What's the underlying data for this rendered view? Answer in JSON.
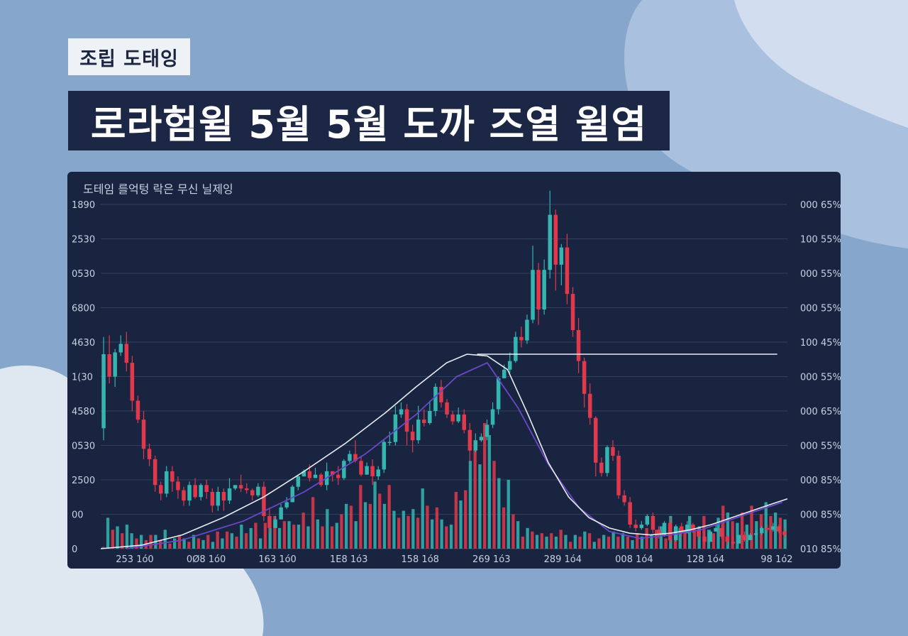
{
  "tag_label": "조립 도태잉",
  "headline": "로라험윌 5월 5월 도까 즈열 윌염",
  "chart_data": {
    "type": "candlestick-volume",
    "subtitle": "도테임 를억텅 락은 무신 닐제잉",
    "left_ticks": [
      "1890",
      "2530",
      "0530",
      "6800",
      "4630",
      "1(30",
      "4580",
      "0530",
      "2500",
      "00",
      "0"
    ],
    "right_ticks": [
      "000 65%",
      "100 55%",
      "000 55%",
      "000 55%",
      "100 45%",
      "000 55%",
      "000 65%",
      "000 55%",
      "000 85%",
      "000 85%",
      "010 85%"
    ],
    "x_ticks": [
      "253 1ó0",
      "0Ø8 1ó0",
      "163 1ó0",
      "1E8 1ó3",
      "158 1ó8",
      "269 1ó3",
      "289 1ó4",
      "008 1ó4",
      "128 1ó4",
      "98 1ó2"
    ],
    "grid": true,
    "colors": {
      "up": "#35b5b0",
      "down": "#e2384b",
      "line_white": "#e8ecf0",
      "line_purple": "#6a48c8",
      "panel_bg": "#182440",
      "grid": "#33405c"
    },
    "price_candles": [
      [
        7.0,
        11.3,
        12.3,
        6.3
      ],
      [
        11.3,
        10.0,
        12.4,
        9.6
      ],
      [
        10.0,
        11.4,
        11.6,
        9.4
      ],
      [
        11.4,
        11.9,
        12.4,
        11.2
      ],
      [
        11.9,
        10.8,
        12.6,
        10.3
      ],
      [
        10.8,
        8.6,
        11.2,
        8.0
      ],
      [
        8.6,
        7.5,
        8.9,
        7.3
      ],
      [
        7.5,
        5.8,
        8.0,
        5.2
      ],
      [
        5.8,
        5.2,
        6.1,
        4.8
      ],
      [
        5.2,
        3.7,
        5.4,
        3.3
      ],
      [
        3.7,
        3.2,
        3.9,
        2.8
      ],
      [
        3.2,
        4.5,
        4.8,
        3.0
      ],
      [
        4.5,
        3.9,
        4.8,
        3.3
      ],
      [
        3.9,
        3.4,
        4.2,
        2.9
      ],
      [
        3.4,
        2.8,
        3.6,
        2.5
      ],
      [
        2.8,
        3.7,
        3.9,
        2.5
      ],
      [
        3.7,
        3.0,
        4.1,
        2.9
      ],
      [
        3.0,
        3.7,
        3.8,
        2.8
      ],
      [
        3.7,
        3.3,
        4.0,
        2.9
      ],
      [
        3.3,
        2.5,
        3.5,
        2.1
      ],
      [
        2.5,
        3.3,
        3.6,
        2.2
      ],
      [
        3.3,
        2.8,
        3.5,
        2.2
      ],
      [
        2.8,
        3.5,
        4.1,
        2.6
      ],
      [
        3.5,
        3.7,
        3.7,
        3.4
      ],
      [
        3.7,
        3.5,
        4.3,
        3.3
      ],
      [
        3.5,
        3.4,
        3.8,
        3.2
      ],
      [
        3.4,
        3.1,
        3.5,
        2.8
      ],
      [
        3.1,
        3.6,
        3.8,
        3.0
      ],
      [
        3.6,
        1.9,
        3.9,
        1.6
      ],
      [
        1.9,
        1.2,
        2.4,
        0.9
      ],
      [
        1.2,
        1.7,
        1.9,
        1.2
      ],
      [
        1.7,
        2.4,
        2.6,
        1.7
      ],
      [
        2.4,
        2.7,
        3.0,
        2.3
      ],
      [
        2.7,
        3.6,
        3.7,
        2.7
      ],
      [
        3.6,
        4.2,
        4.3,
        3.4
      ],
      [
        4.2,
        4.5,
        4.6,
        4.2
      ],
      [
        4.5,
        4.1,
        4.9,
        3.9
      ],
      [
        4.1,
        4.3,
        4.7,
        4.1
      ],
      [
        4.3,
        3.7,
        4.4,
        3.6
      ],
      [
        3.7,
        4.5,
        5.0,
        3.4
      ],
      [
        4.5,
        4.3,
        4.5,
        3.9
      ],
      [
        4.3,
        4.1,
        4.8,
        3.7
      ],
      [
        4.1,
        5.1,
        5.2,
        4.0
      ],
      [
        5.1,
        5.5,
        5.7,
        5.0
      ],
      [
        5.5,
        5.1,
        6.3,
        5.0
      ],
      [
        5.1,
        4.3,
        5.4,
        4.2
      ],
      [
        4.3,
        4.8,
        5.0,
        4.3
      ],
      [
        4.8,
        4.2,
        5.2,
        3.7
      ],
      [
        4.2,
        4.6,
        4.8,
        4.0
      ],
      [
        4.6,
        6.2,
        6.3,
        4.4
      ],
      [
        6.2,
        6.2,
        6.8,
        6.0
      ],
      [
        6.2,
        7.8,
        8.3,
        6.0
      ],
      [
        7.8,
        8.1,
        8.5,
        7.6
      ],
      [
        8.1,
        6.8,
        8.4,
        6.0
      ],
      [
        6.8,
        6.3,
        7.2,
        5.6
      ],
      [
        6.3,
        7.5,
        8.3,
        6.1
      ],
      [
        7.5,
        7.3,
        8.1,
        7.1
      ],
      [
        7.3,
        8.0,
        8.6,
        7.2
      ],
      [
        8.0,
        9.4,
        9.6,
        7.7
      ],
      [
        9.4,
        8.5,
        9.8,
        8.2
      ],
      [
        8.5,
        7.8,
        8.7,
        7.6
      ],
      [
        7.8,
        7.4,
        8.0,
        7.2
      ],
      [
        7.4,
        7.8,
        8.2,
        7.3
      ],
      [
        7.8,
        6.9,
        8.1,
        6.7
      ],
      [
        6.9,
        5.7,
        7.3,
        5.1
      ],
      [
        5.7,
        6.3,
        6.7,
        5.6
      ],
      [
        6.3,
        6.5,
        6.7,
        6.2
      ],
      [
        6.5,
        7.2,
        7.5,
        6.3
      ],
      [
        7.2,
        8.1,
        8.5,
        7.0
      ],
      [
        8.1,
        9.9,
        10.0,
        7.8
      ],
      [
        9.9,
        10.4,
        10.7,
        9.9
      ],
      [
        10.4,
        10.9,
        11.4,
        10.2
      ],
      [
        10.9,
        12.3,
        12.6,
        10.8
      ],
      [
        12.3,
        12.1,
        12.9,
        11.7
      ],
      [
        12.1,
        13.3,
        13.6,
        11.9
      ],
      [
        13.3,
        16.2,
        17.6,
        13.1
      ],
      [
        16.2,
        13.9,
        16.6,
        13.0
      ],
      [
        13.9,
        16.2,
        16.8,
        13.6
      ],
      [
        16.2,
        19.4,
        20.8,
        15.7
      ],
      [
        19.4,
        16.5,
        19.7,
        15.0
      ],
      [
        16.5,
        17.5,
        17.7,
        15.3
      ],
      [
        17.5,
        14.8,
        18.3,
        14.2
      ],
      [
        14.8,
        12.7,
        15.2,
        12.3
      ],
      [
        12.7,
        10.9,
        13.4,
        10.2
      ],
      [
        10.9,
        9.0,
        11.1,
        8.2
      ],
      [
        9.0,
        7.6,
        9.6,
        7.2
      ],
      [
        7.6,
        5.0,
        7.7,
        4.2
      ],
      [
        5.0,
        4.4,
        5.3,
        4.2
      ],
      [
        4.4,
        5.9,
        6.0,
        4.2
      ],
      [
        5.9,
        5.4,
        6.3,
        5.1
      ],
      [
        5.4,
        3.1,
        5.7,
        2.9
      ],
      [
        3.1,
        2.7,
        3.4,
        2.5
      ],
      [
        2.7,
        1.4,
        3.0,
        1.2
      ],
      [
        1.4,
        1.2,
        1.7,
        1.0
      ],
      [
        1.2,
        1.4,
        1.6,
        1.1
      ],
      [
        1.4,
        1.9,
        2.0,
        1.3
      ],
      [
        1.9,
        1.1,
        2.1,
        0.9
      ],
      [
        1.1,
        0.8,
        1.3,
        0.6
      ],
      [
        0.8,
        1.5,
        1.6,
        0.7
      ],
      [
        1.5,
        0.5,
        1.8,
        0.3
      ],
      [
        0.5,
        1.3,
        1.4,
        0.4
      ],
      [
        1.3,
        0.9,
        1.5,
        0.7
      ],
      [
        0.9,
        1.4,
        1.6,
        0.9
      ],
      [
        1.4,
        1.1,
        1.5,
        0.9
      ],
      [
        1.1,
        0.7,
        1.2,
        0.5
      ],
      [
        0.7,
        0.4,
        1.0,
        0.2
      ],
      [
        0.4,
        1.0,
        1.1,
        0.4
      ],
      [
        1.0,
        1.2,
        1.5,
        1.0
      ],
      [
        1.2,
        0.7,
        1.4,
        0.6
      ],
      [
        0.7,
        0.4,
        0.8,
        0.2
      ],
      [
        0.4,
        0.3,
        0.7,
        0.2
      ],
      [
        0.3,
        0.8,
        0.8,
        0.3
      ],
      [
        0.8,
        0.5,
        1.0,
        0.4
      ],
      [
        0.5,
        0.8,
        0.9,
        0.5
      ],
      [
        0.8,
        0.9,
        1.1,
        0.7
      ],
      [
        0.9,
        1.2,
        1.3,
        0.8
      ],
      [
        1.2,
        1.1,
        1.4,
        1.0
      ],
      [
        1.1,
        1.3,
        1.5,
        1.0
      ],
      [
        1.3,
        1.0,
        1.4,
        0.9
      ],
      [
        1.0,
        0.8,
        1.2,
        0.6
      ]
    ],
    "volume_bars": [
      [
        0.1,
        0
      ],
      [
        1.8,
        1
      ],
      [
        1.1,
        0
      ],
      [
        1.3,
        1
      ],
      [
        0.9,
        0
      ],
      [
        1.4,
        1
      ],
      [
        0.9,
        1
      ],
      [
        0.6,
        0
      ],
      [
        0.8,
        1
      ],
      [
        0.5,
        0
      ],
      [
        0.8,
        0
      ],
      [
        0.8,
        1
      ],
      [
        0.5,
        0
      ],
      [
        1.1,
        1
      ],
      [
        0.3,
        0
      ],
      [
        0.6,
        1
      ],
      [
        0.8,
        0
      ],
      [
        0.6,
        1
      ],
      [
        0.4,
        0
      ],
      [
        0.8,
        1
      ],
      [
        0.6,
        0
      ],
      [
        0.5,
        1
      ],
      [
        0.8,
        0
      ],
      [
        0.4,
        1
      ],
      [
        1.0,
        0
      ],
      [
        0.6,
        1
      ],
      [
        1.0,
        0
      ],
      [
        0.9,
        1
      ],
      [
        0.7,
        0
      ],
      [
        1.4,
        1
      ],
      [
        0.9,
        0
      ],
      [
        1.2,
        1
      ],
      [
        1.5,
        0
      ],
      [
        0.6,
        1
      ],
      [
        1.5,
        0
      ],
      [
        1.2,
        1
      ],
      [
        1.9,
        0
      ],
      [
        1.2,
        1
      ],
      [
        1.6,
        0
      ],
      [
        1.6,
        1
      ],
      [
        1.4,
        0
      ],
      [
        1.4,
        1
      ],
      [
        2.1,
        0
      ],
      [
        1.3,
        1
      ],
      [
        3.0,
        0
      ],
      [
        1.7,
        1
      ],
      [
        1.3,
        0
      ],
      [
        2.3,
        1
      ],
      [
        1.3,
        0
      ],
      [
        1.5,
        1
      ],
      [
        2.0,
        0
      ],
      [
        2.6,
        1
      ],
      [
        2.5,
        0
      ],
      [
        1.6,
        1
      ],
      [
        3.7,
        0
      ],
      [
        2.7,
        1
      ],
      [
        2.6,
        0
      ],
      [
        3.9,
        1
      ],
      [
        3.2,
        0
      ],
      [
        2.6,
        1
      ],
      [
        3.7,
        0
      ],
      [
        2.2,
        1
      ],
      [
        1.8,
        0
      ],
      [
        2.2,
        1
      ],
      [
        1.9,
        0
      ],
      [
        2.3,
        1
      ],
      [
        1.8,
        0
      ],
      [
        3.5,
        1
      ],
      [
        2.5,
        0
      ],
      [
        1.7,
        1
      ],
      [
        2.4,
        0
      ],
      [
        1.7,
        1
      ],
      [
        1.3,
        0
      ],
      [
        1.4,
        1
      ],
      [
        3.3,
        0
      ],
      [
        2.8,
        1
      ],
      [
        3.4,
        0
      ],
      [
        5.1,
        1
      ],
      [
        6.3,
        0
      ],
      [
        4.9,
        1
      ],
      [
        7.3,
        0
      ],
      [
        6.6,
        1
      ],
      [
        5.1,
        0
      ],
      [
        4.1,
        1
      ],
      [
        2.4,
        0
      ],
      [
        4.0,
        1
      ],
      [
        2.0,
        0
      ],
      [
        1.6,
        1
      ],
      [
        0.7,
        0
      ],
      [
        1.2,
        1
      ],
      [
        1.0,
        0
      ],
      [
        0.8,
        1
      ],
      [
        0.9,
        0
      ],
      [
        0.7,
        1
      ],
      [
        0.9,
        0
      ],
      [
        0.7,
        1
      ],
      [
        1.1,
        0
      ],
      [
        0.8,
        1
      ],
      [
        0.4,
        0
      ],
      [
        0.8,
        1
      ],
      [
        0.7,
        0
      ],
      [
        1.0,
        1
      ],
      [
        0.9,
        0
      ],
      [
        0.4,
        1
      ],
      [
        0.6,
        0
      ],
      [
        0.8,
        1
      ],
      [
        0.7,
        0
      ],
      [
        1.0,
        1
      ],
      [
        0.7,
        0
      ],
      [
        0.9,
        1
      ],
      [
        0.7,
        0
      ],
      [
        0.5,
        1
      ],
      [
        0.9,
        0
      ],
      [
        0.7,
        1
      ],
      [
        1.2,
        0
      ],
      [
        0.8,
        1
      ],
      [
        1.1,
        0
      ],
      [
        1.3,
        1
      ],
      [
        0.6,
        0
      ],
      [
        1.9,
        1
      ],
      [
        1.2,
        0
      ],
      [
        1.2,
        1
      ],
      [
        1.1,
        0
      ],
      [
        1.9,
        1
      ],
      [
        1.1,
        0
      ],
      [
        1.3,
        1
      ],
      [
        1.9,
        0
      ],
      [
        1.1,
        1
      ],
      [
        0.9,
        0
      ],
      [
        1.8,
        1
      ],
      [
        2.5,
        0
      ],
      [
        2.1,
        1
      ],
      [
        1.6,
        0
      ],
      [
        1.5,
        1
      ],
      [
        2.1,
        0
      ],
      [
        1.4,
        1
      ],
      [
        2.5,
        0
      ],
      [
        1.6,
        1
      ],
      [
        2.0,
        0
      ],
      [
        2.7,
        1
      ],
      [
        1.9,
        0
      ],
      [
        2.1,
        1
      ],
      [
        1.8,
        0
      ],
      [
        1.7,
        1
      ]
    ],
    "trend_white": [
      [
        0,
        0
      ],
      [
        8,
        0.2
      ],
      [
        16,
        0.8
      ],
      [
        24,
        1.8
      ],
      [
        32,
        3.0
      ],
      [
        40,
        4.5
      ],
      [
        48,
        6.1
      ],
      [
        56,
        7.9
      ],
      [
        62,
        9.4
      ],
      [
        68,
        10.8
      ],
      [
        72,
        11.3
      ],
      [
        76,
        11.2
      ],
      [
        80,
        10.4
      ],
      [
        84,
        7.8
      ],
      [
        88,
        5.0
      ],
      [
        92,
        3.0
      ],
      [
        96,
        1.8
      ],
      [
        100,
        1.2
      ],
      [
        104,
        0.9
      ],
      [
        108,
        0.8
      ],
      [
        112,
        0.9
      ],
      [
        116,
        1.1
      ],
      [
        120,
        1.4
      ],
      [
        124,
        1.8
      ],
      [
        128,
        2.2
      ],
      [
        132,
        2.6
      ],
      [
        135,
        2.9
      ]
    ],
    "trend_white_flat": [
      [
        74,
        11.3
      ],
      [
        133,
        11.3
      ]
    ],
    "trend_purple": [
      [
        5,
        0
      ],
      [
        16,
        0.5
      ],
      [
        28,
        1.6
      ],
      [
        40,
        3.3
      ],
      [
        52,
        5.5
      ],
      [
        62,
        7.8
      ],
      [
        70,
        10.0
      ],
      [
        76,
        10.8
      ],
      [
        82,
        8.2
      ],
      [
        88,
        4.9
      ],
      [
        94,
        2.4
      ],
      [
        100,
        1.0
      ],
      [
        106,
        0.6
      ],
      [
        112,
        0.8
      ],
      [
        118,
        1.1
      ],
      [
        126,
        1.9
      ],
      [
        134,
        2.7
      ]
    ]
  }
}
